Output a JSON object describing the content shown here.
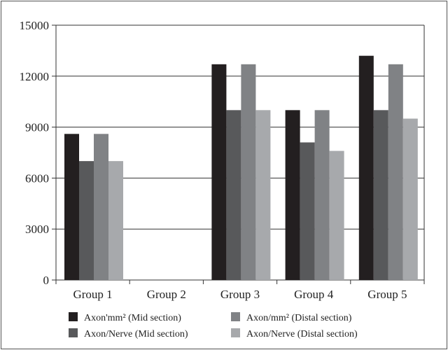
{
  "chart_data": {
    "type": "bar",
    "categories": [
      "Group 1",
      "Group 2",
      "Group 3",
      "Group 4",
      "Group 5"
    ],
    "ylim": [
      0,
      15000
    ],
    "yticks": [
      0,
      3000,
      6000,
      9000,
      12000,
      15000
    ],
    "grid": true,
    "legend_position": "bottom",
    "series": [
      {
        "name": "Axon'mm² (Mid section)",
        "color": "#231f20",
        "values": [
          8600,
          0,
          12700,
          10000,
          13200
        ]
      },
      {
        "name": "Axon/Nerve (Mid section)",
        "color": "#58595b",
        "values": [
          7000,
          0,
          10000,
          8100,
          10000
        ]
      },
      {
        "name": "Axon/mm² (Distal section)",
        "color": "#808285",
        "values": [
          8600,
          0,
          12700,
          10000,
          12700
        ]
      },
      {
        "name": "Axon/Nerve (Distal section)",
        "color": "#a7a9ac",
        "values": [
          7000,
          0,
          10000,
          7600,
          9500
        ]
      }
    ]
  }
}
